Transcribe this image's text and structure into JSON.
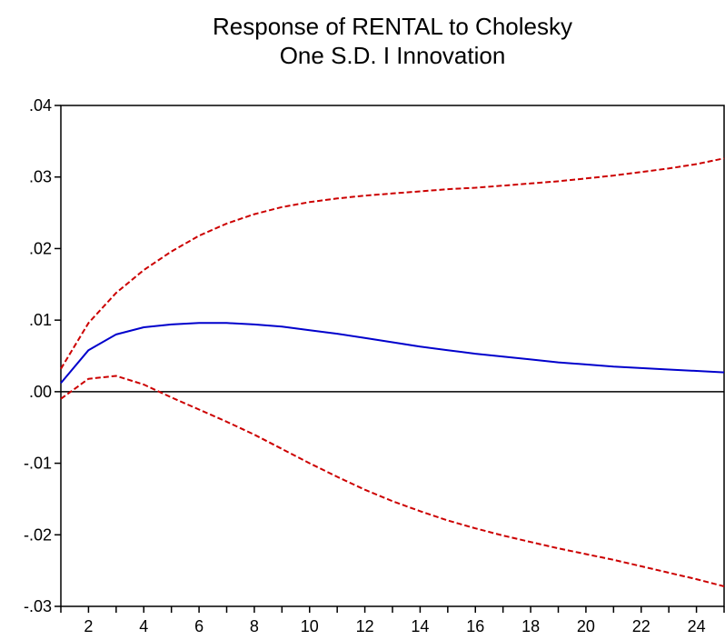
{
  "chart_data": {
    "type": "line",
    "title": [
      "Response of RENTAL to Cholesky",
      "One S.D. I Innovation"
    ],
    "xlabel": "",
    "ylabel": "",
    "xlim": [
      1,
      25
    ],
    "ylim": [
      -0.03,
      0.04
    ],
    "x_ticks": [
      2,
      4,
      6,
      8,
      10,
      12,
      14,
      16,
      18,
      20,
      22,
      24
    ],
    "y_ticks": [
      {
        "value": 0.04,
        "label": ".04"
      },
      {
        "value": 0.03,
        "label": ".03"
      },
      {
        "value": 0.02,
        "label": ".02"
      },
      {
        "value": 0.01,
        "label": ".01"
      },
      {
        "value": 0.0,
        "label": ".00"
      },
      {
        "value": -0.01,
        "label": "-.01"
      },
      {
        "value": -0.02,
        "label": "-.02"
      },
      {
        "value": -0.03,
        "label": "-.03"
      }
    ],
    "grid": false,
    "zero_line": true,
    "x": [
      1,
      2,
      3,
      4,
      5,
      6,
      7,
      8,
      9,
      10,
      11,
      12,
      13,
      14,
      15,
      16,
      17,
      18,
      19,
      20,
      21,
      22,
      23,
      24,
      25
    ],
    "series": [
      {
        "role": "response",
        "color": "#0000cc",
        "dashed": false,
        "values": [
          0.0012,
          0.0058,
          0.008,
          0.009,
          0.0094,
          0.0096,
          0.0096,
          0.0094,
          0.0091,
          0.0086,
          0.0081,
          0.0075,
          0.0069,
          0.0063,
          0.0058,
          0.0053,
          0.0049,
          0.0045,
          0.0041,
          0.0038,
          0.0035,
          0.0033,
          0.0031,
          0.0029,
          0.0027
        ]
      },
      {
        "role": "upper-band",
        "color": "#cc0000",
        "dashed": true,
        "values": [
          0.0032,
          0.0096,
          0.0138,
          0.017,
          0.0196,
          0.0218,
          0.0235,
          0.0248,
          0.0258,
          0.0265,
          0.027,
          0.0274,
          0.0277,
          0.028,
          0.0283,
          0.0285,
          0.0288,
          0.0291,
          0.0294,
          0.0298,
          0.0302,
          0.0307,
          0.0312,
          0.0318,
          0.0326
        ]
      },
      {
        "role": "lower-band",
        "color": "#cc0000",
        "dashed": true,
        "values": [
          -0.001,
          0.0018,
          0.0022,
          0.001,
          -0.0008,
          -0.0025,
          -0.0042,
          -0.006,
          -0.008,
          -0.01,
          -0.0119,
          -0.0137,
          -0.0153,
          -0.0167,
          -0.018,
          -0.0191,
          -0.0201,
          -0.021,
          -0.0219,
          -0.0227,
          -0.0235,
          -0.0244,
          -0.0253,
          -0.0262,
          -0.0272
        ]
      }
    ]
  }
}
